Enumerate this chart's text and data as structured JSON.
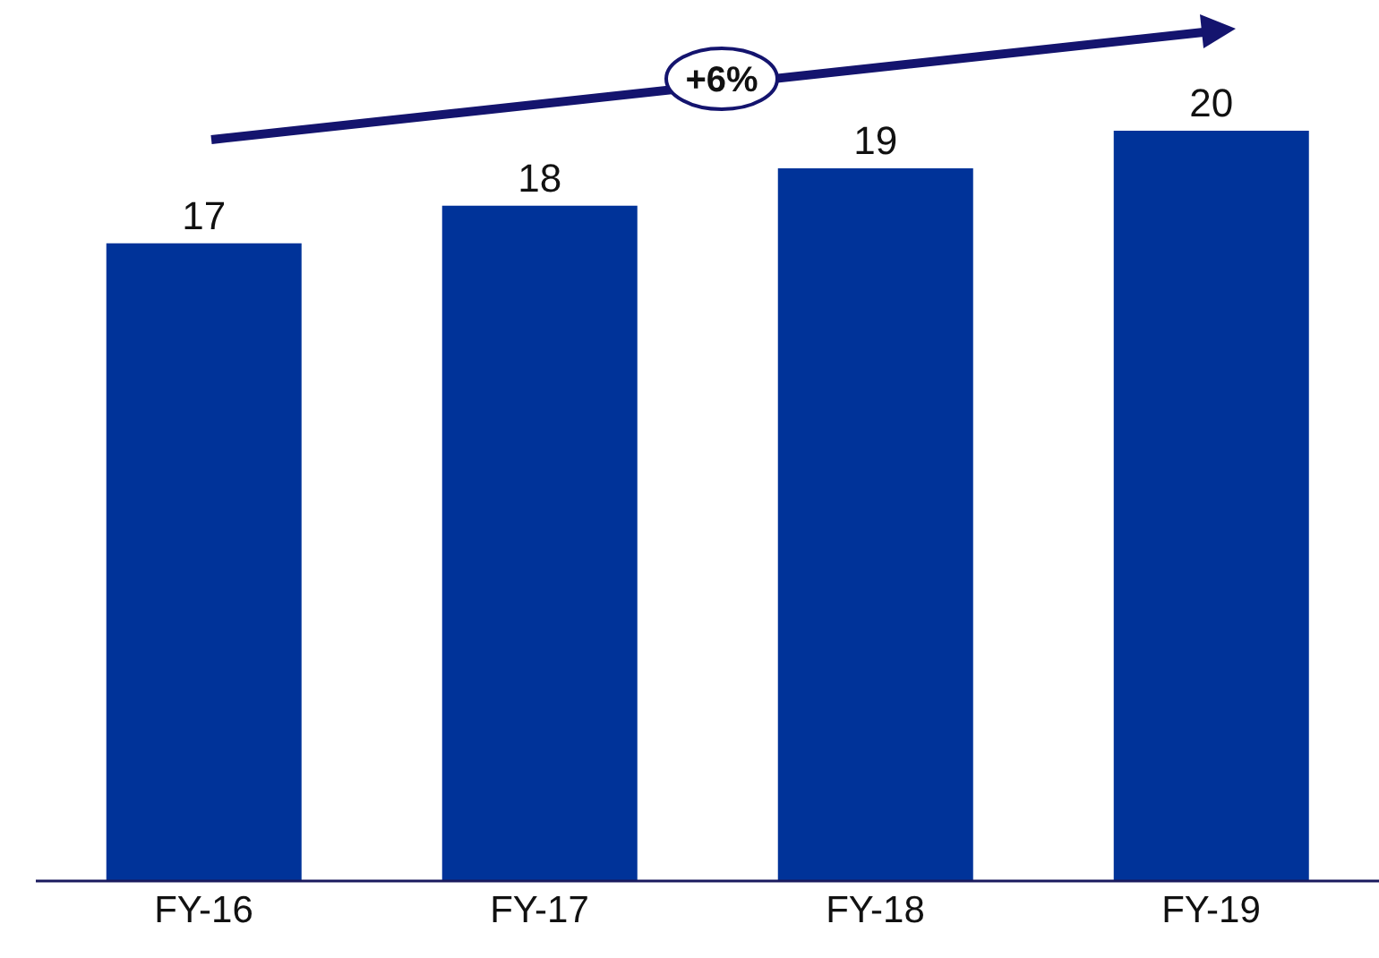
{
  "chart_data": {
    "type": "bar",
    "categories": [
      "FY-16",
      "FY-17",
      "FY-18",
      "FY-19"
    ],
    "values": [
      17,
      18,
      19,
      20
    ],
    "color": "#003399",
    "data_labels": true,
    "annotations": [
      "+6%"
    ]
  }
}
